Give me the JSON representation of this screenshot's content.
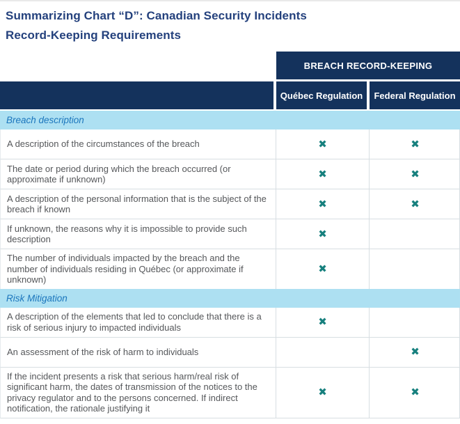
{
  "title": {
    "line1": "Summarizing Chart “D”: Canadian Security Incidents",
    "line2": "Record-Keeping Requirements"
  },
  "table": {
    "banner": "BREACH RECORD-KEEPING",
    "columns": [
      "Québec Regulation",
      "Federal Regulation"
    ],
    "check_glyph": "✖",
    "sections": [
      {
        "label": "Breach description",
        "rows": [
          {
            "text": "A description of the circumstances of the breach",
            "quebec": true,
            "federal": true
          },
          {
            "text": "The date or period during which the breach occurred (or approximate if unknown)",
            "quebec": true,
            "federal": true
          },
          {
            "text": "A description of the personal information that is the subject of the breach if known",
            "quebec": true,
            "federal": true
          },
          {
            "text": "If unknown, the reasons why it is impossible to provide such description",
            "quebec": true,
            "federal": false
          },
          {
            "text": "The number of individuals impacted by the breach and the number of individuals residing in Québec (or approximate if unknown)",
            "quebec": true,
            "federal": false
          }
        ]
      },
      {
        "label": "Risk Mitigation",
        "rows": [
          {
            "text": "A description of the elements that led to conclude that there is a risk of serious injury to impacted individuals",
            "quebec": true,
            "federal": false
          },
          {
            "text": "An assessment of the risk of harm to individuals",
            "quebec": false,
            "federal": true
          },
          {
            "text": "If the incident presents a risk that serious harm/real risk of significant harm, the dates of transmission of the notices to the privacy regulator and to the persons concerned. If indirect notification, the rationale justifying it",
            "quebec": true,
            "federal": true
          }
        ]
      }
    ]
  },
  "colors": {
    "navy": "#14325C",
    "title_blue": "#24417D",
    "section_band_bg": "#ADE0F2",
    "section_band_text": "#1B76BD",
    "check_teal": "#17807E",
    "body_text": "#55575A",
    "row_border": "#D7DEE2"
  }
}
